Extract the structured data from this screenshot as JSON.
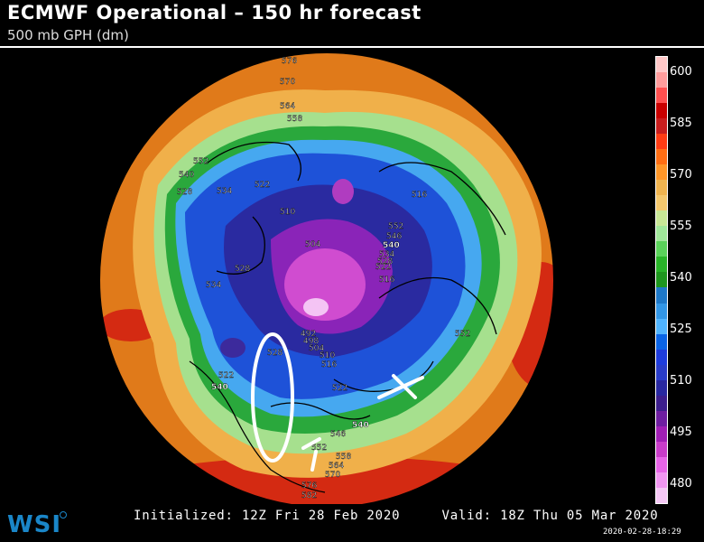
{
  "header": {
    "title": "ECMWF Operational – 150 hr forecast",
    "subtitle": "500 mb GPH (dm)"
  },
  "map": {
    "projection": "polar-stereographic-north",
    "contour_labels": [
      "576",
      "570",
      "564",
      "558",
      "552",
      "540",
      "534",
      "528",
      "522",
      "510",
      "504",
      "516",
      "552",
      "546",
      "540",
      "534",
      "528",
      "522",
      "516",
      "534",
      "552",
      "528",
      "522",
      "540",
      "492",
      "498",
      "504",
      "510",
      "516",
      "528",
      "522",
      "546",
      "540",
      "552",
      "558",
      "564",
      "570",
      "576",
      "582"
    ],
    "annotations": [
      {
        "name": "oval",
        "color": "#ffffff"
      },
      {
        "name": "cross-mark",
        "color": "#ffffff"
      },
      {
        "name": "arrow",
        "color": "#ffffff"
      }
    ]
  },
  "colorbar": {
    "labels": [
      "600",
      "585",
      "570",
      "555",
      "540",
      "525",
      "510",
      "495",
      "480"
    ],
    "colors": [
      "#ffc8c8",
      "#ff9c9c",
      "#ff5050",
      "#c80000",
      "#c81e1e",
      "#ff3c14",
      "#ff6e14",
      "#ff9628",
      "#f0b450",
      "#f5c86e",
      "#c8e696",
      "#a0e69a",
      "#5ad25a",
      "#28b428",
      "#1e961e",
      "#1e78c8",
      "#3296e6",
      "#50b4ff",
      "#0a64e6",
      "#1e3cdc",
      "#283cc8",
      "#2828a0",
      "#3c1e8c",
      "#6e1ea0",
      "#a01eb4",
      "#c83cc8",
      "#e664e6",
      "#f096f0",
      "#f5c8f5"
    ]
  },
  "footer": {
    "initialized": "Initialized: 12Z Fri 28 Feb 2020",
    "valid": "Valid: 18Z Thu 05 Mar 2020",
    "timestamp": "2020-02-28-18:29",
    "logo": "WSI"
  }
}
